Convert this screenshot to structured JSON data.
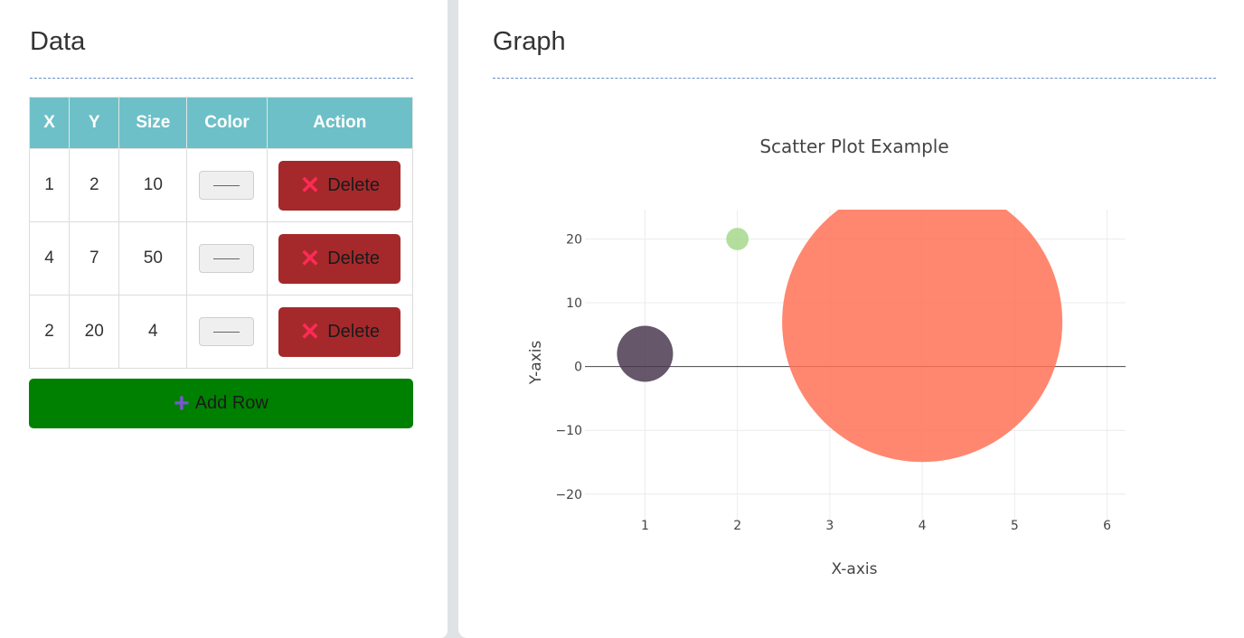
{
  "left_panel": {
    "title": "Data",
    "table": {
      "headers": [
        "X",
        "Y",
        "Size",
        "Color",
        "Action"
      ],
      "rows": [
        {
          "x": "1",
          "y": "2",
          "size": "10",
          "action_label": "Delete"
        },
        {
          "x": "4",
          "y": "7",
          "size": "50",
          "action_label": "Delete"
        },
        {
          "x": "2",
          "y": "20",
          "size": "4",
          "action_label": "Delete"
        }
      ]
    },
    "add_row_label": "Add Row",
    "icons": {
      "delete": "close-icon",
      "add": "plus-icon"
    },
    "colors": {
      "header_bg": "#6dc0c8",
      "delete_bg": "#a5292b",
      "add_bg": "#008000"
    }
  },
  "right_panel": {
    "title": "Graph"
  },
  "chart_data": {
    "type": "scatter",
    "title": "Scatter Plot Example",
    "xlabel": "X-axis",
    "ylabel": "Y-axis",
    "xlim": [
      0.35,
      6.2
    ],
    "ylim": [
      -24,
      24.6
    ],
    "xticks": [
      1,
      2,
      3,
      4,
      5,
      6
    ],
    "yticks": [
      -20,
      -10,
      0,
      10,
      20
    ],
    "grid": true,
    "points": [
      {
        "x": 1,
        "y": 2,
        "size": 10,
        "color": "#4b3a50"
      },
      {
        "x": 4,
        "y": 7,
        "size": 50,
        "color": "#ff7256"
      },
      {
        "x": 2,
        "y": 20,
        "size": 4,
        "color": "#a7d88c"
      }
    ]
  }
}
